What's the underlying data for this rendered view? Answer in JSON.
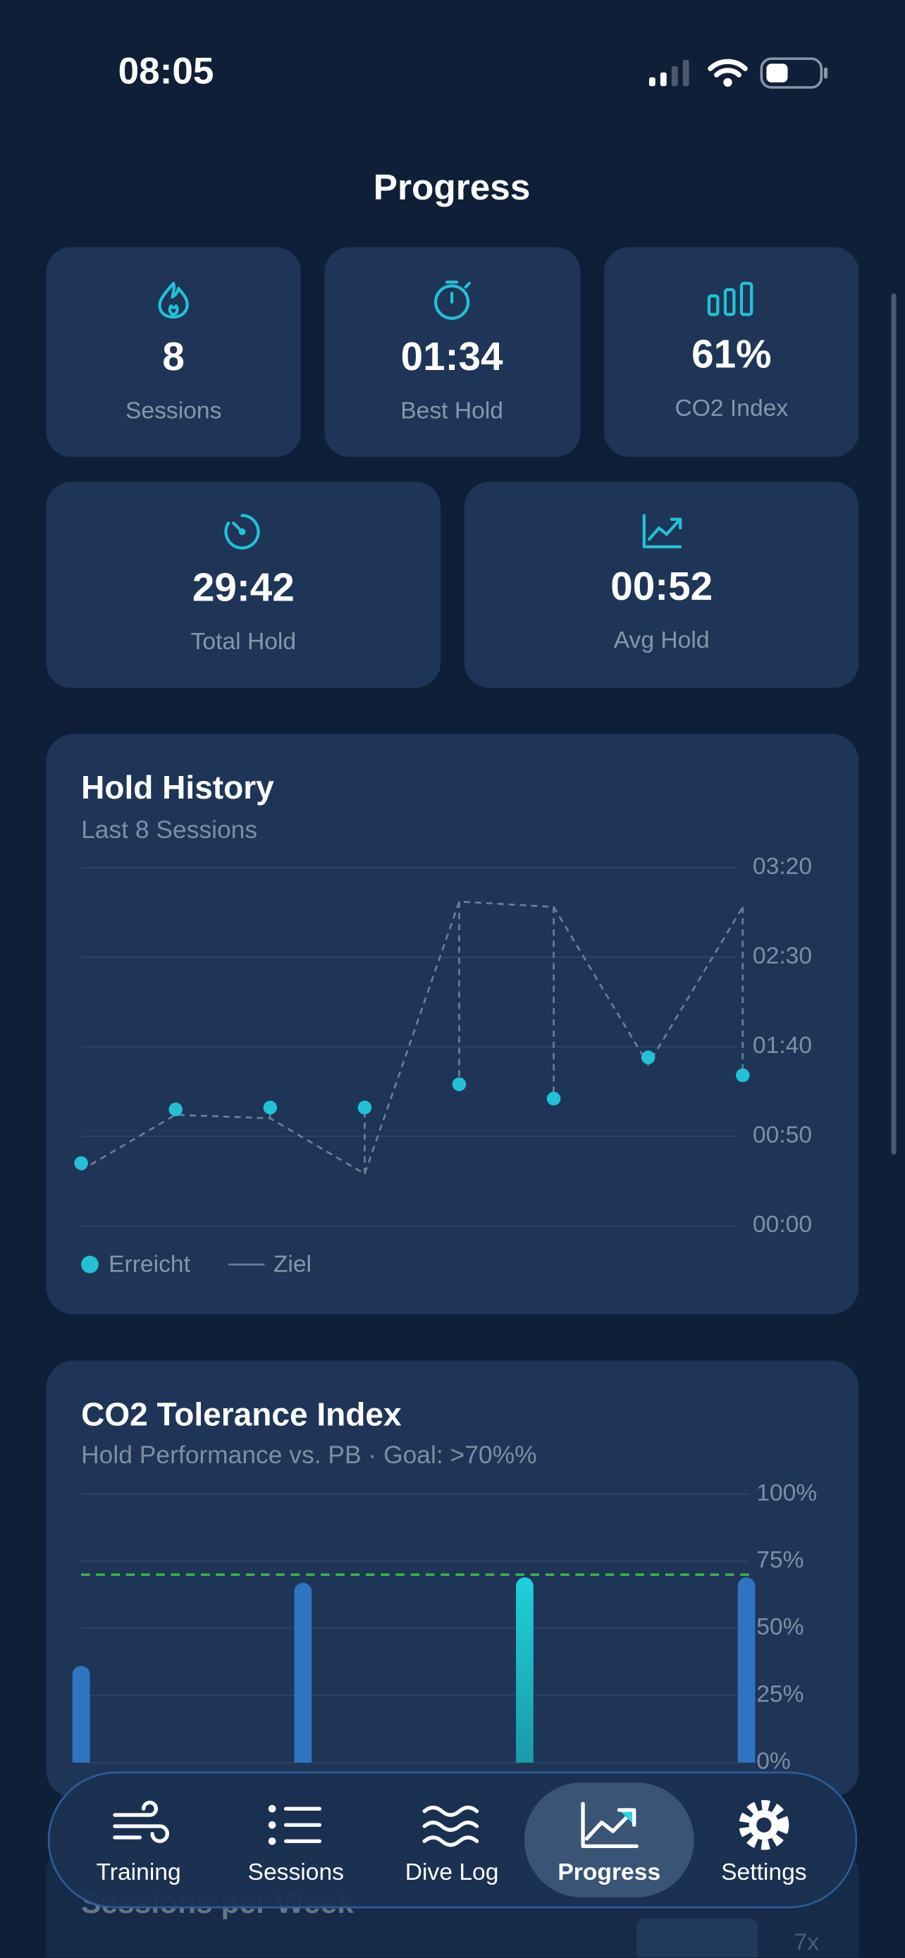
{
  "status_bar": {
    "time": "08:05"
  },
  "header": {
    "title": "Progress"
  },
  "stats": [
    {
      "value": "8",
      "label": "Sessions"
    },
    {
      "value": "01:34",
      "label": "Best Hold"
    },
    {
      "value": "61%",
      "label": "CO2 Index"
    },
    {
      "value": "29:42",
      "label": "Total Hold"
    },
    {
      "value": "00:52",
      "label": "Avg Hold"
    }
  ],
  "chart_data": [
    {
      "type": "line",
      "title": "Hold History",
      "subtitle": "Last 8 Sessions",
      "series": [
        {
          "name": "Erreicht",
          "color": "#22c1d6",
          "style": "dots",
          "values": [
            35,
            65,
            66,
            66,
            79,
            71,
            94,
            84
          ]
        },
        {
          "name": "Ziel",
          "color": "#6b7f99",
          "style": "dashed",
          "values": [
            31,
            62,
            60,
            29,
            181,
            178,
            90,
            178
          ]
        }
      ],
      "ylim": [
        0,
        200
      ],
      "yticks": [
        {
          "value": 0,
          "label": "00:00"
        },
        {
          "value": 50,
          "label": "00:50"
        },
        {
          "value": 100,
          "label": "01:40"
        },
        {
          "value": 150,
          "label": "02:30"
        },
        {
          "value": 200,
          "label": "03:20"
        }
      ],
      "grid": true,
      "y_axis_side": "right"
    },
    {
      "type": "bar",
      "title": "CO2 Tolerance Index",
      "subtitle": "Hold Performance vs. PB · Goal: >70%%",
      "values": [
        36,
        67,
        69,
        69
      ],
      "colors": [
        "#2f74c0",
        "#2f74c0",
        "#1fc3cf",
        "#2f74c0"
      ],
      "goal_line": 70,
      "goal_color": "#3bb54a",
      "ylim": [
        0,
        100
      ],
      "yticks": [
        {
          "value": 0,
          "label": "0%"
        },
        {
          "value": 25,
          "label": "25%"
        },
        {
          "value": 50,
          "label": "50%"
        },
        {
          "value": 75,
          "label": "75%"
        },
        {
          "value": 100,
          "label": "100%"
        }
      ],
      "grid": true,
      "y_axis_side": "right"
    }
  ],
  "partial_card": {
    "title": "Sessions per Week",
    "label": "7x"
  },
  "tab_bar": {
    "items": [
      "Training",
      "Sessions",
      "Dive Log",
      "Progress",
      "Settings"
    ],
    "active": 3
  }
}
